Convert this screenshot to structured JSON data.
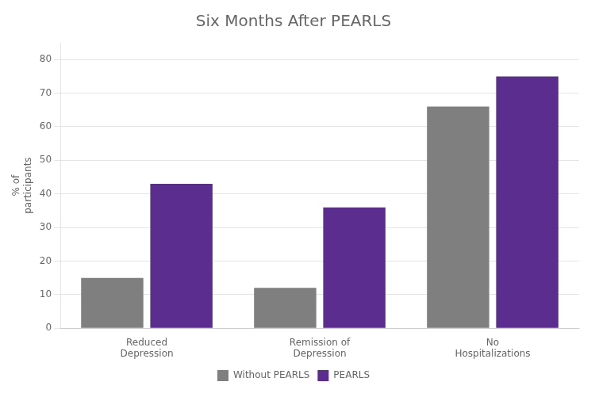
{
  "chart_data": {
    "type": "bar",
    "title": "Six Months After PEARLS",
    "categories": [
      "Reduced\nDepression",
      "Remission of\nDepression",
      "No\nHospitalizations"
    ],
    "series": [
      {
        "name": "Without PEARLS",
        "color": "#7f7f7f",
        "values": [
          15,
          12,
          66
        ]
      },
      {
        "name": "PEARLS",
        "color": "#5B2D8E",
        "values": [
          43,
          36,
          75
        ]
      }
    ],
    "ylabel": "% of\nparticipants",
    "ylim": [
      0,
      85
    ],
    "yticks": [
      0,
      10,
      20,
      30,
      40,
      50,
      60,
      70,
      80
    ],
    "grid": true,
    "legend": "bottom"
  }
}
